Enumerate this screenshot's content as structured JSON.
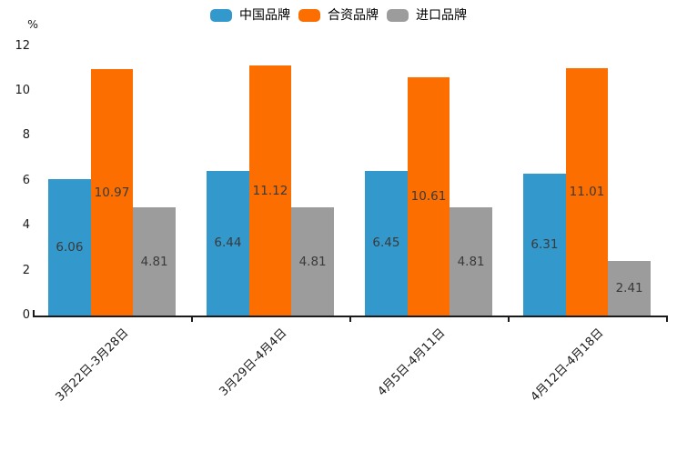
{
  "chart_data": {
    "type": "bar",
    "title": "",
    "ylabel": "%",
    "xlabel": "",
    "ylim": [
      0,
      12
    ],
    "yticks": [
      0,
      2,
      4,
      6,
      8,
      10,
      12
    ],
    "categories": [
      "3月22日-3月28日",
      "3月29日-4月4日",
      "4月5日-4月11日",
      "4月12日-4月18日"
    ],
    "series": [
      {
        "name": "中国品牌",
        "color": "#3398cb",
        "values": [
          6.06,
          6.44,
          6.45,
          6.31
        ]
      },
      {
        "name": "合资品牌",
        "color": "#fc6e00",
        "values": [
          10.97,
          11.12,
          10.61,
          11.01
        ]
      },
      {
        "name": "进口品牌",
        "color": "#9c9c9c",
        "values": [
          4.81,
          4.81,
          4.81,
          2.41
        ]
      }
    ],
    "bar_labels_visible": true,
    "legend_position": "top",
    "grid": false,
    "colors": {
      "axis": "#1a1a1a",
      "bar_label_text": "#3a3a3a",
      "background": "#ffffff"
    }
  }
}
